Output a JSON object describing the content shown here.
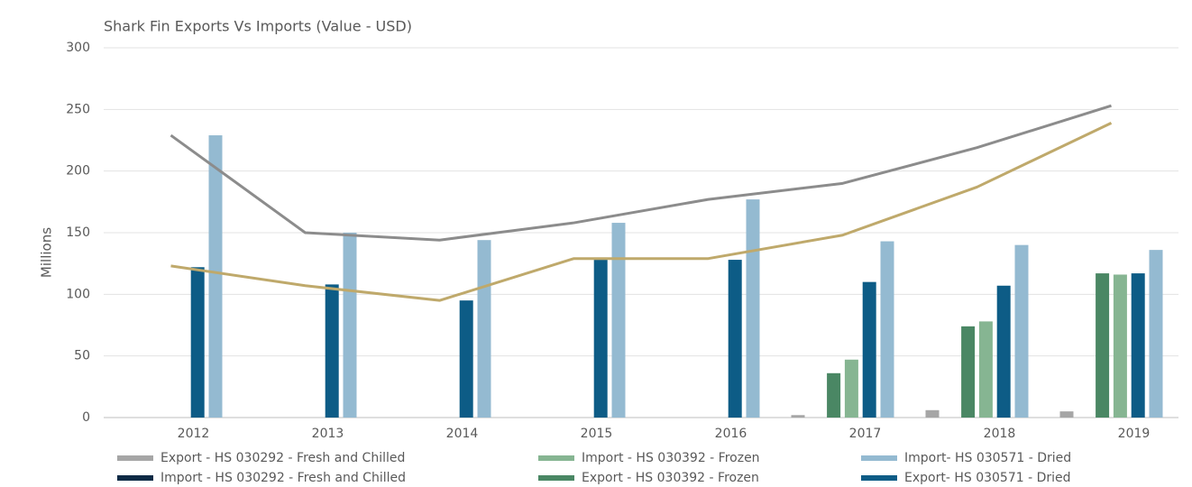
{
  "chart_data": {
    "type": "bar",
    "title": "Shark Fin Exports Vs Imports (Value - USD)",
    "y_label": "Millions",
    "categories": [
      "2012",
      "2013",
      "2014",
      "2015",
      "2016",
      "2017",
      "2018",
      "2019"
    ],
    "ylim": [
      0,
      300
    ],
    "yticks": [
      0,
      50,
      100,
      150,
      200,
      250,
      300
    ],
    "grid": true,
    "series": [
      {
        "name": "Export - HS 030292 - Fresh and Chilled",
        "color": "#a6a6a6",
        "values": [
          null,
          null,
          null,
          null,
          null,
          2,
          6,
          5
        ]
      },
      {
        "name": "Import - HS 030292 - Fresh and Chilled",
        "color": "#0d2a45",
        "values": [
          null,
          null,
          null,
          null,
          null,
          null,
          null,
          null
        ]
      },
      {
        "name": "Export - HS 030392 - Frozen",
        "color": "#4a8764",
        "values": [
          null,
          null,
          null,
          null,
          null,
          36,
          74,
          117
        ]
      },
      {
        "name": "Import - HS 030392 - Frozen",
        "color": "#86b592",
        "values": [
          null,
          null,
          null,
          null,
          null,
          47,
          78,
          116
        ]
      },
      {
        "name": "Export- HS 030571 - Dried",
        "color": "#0d5c86",
        "values": [
          122,
          108,
          95,
          128,
          128,
          110,
          107,
          117
        ]
      },
      {
        "name": "Import- HS 030571 - Dried",
        "color": "#94bad1",
        "values": [
          229,
          150,
          144,
          158,
          177,
          143,
          140,
          136
        ]
      }
    ],
    "lines": [
      {
        "color": "#8c8c8c",
        "values": [
          229,
          150,
          144,
          158,
          177,
          190,
          219,
          253
        ]
      },
      {
        "color": "#bfa96b",
        "values": [
          123,
          107,
          95,
          129,
          129,
          148,
          187,
          239
        ]
      }
    ]
  }
}
